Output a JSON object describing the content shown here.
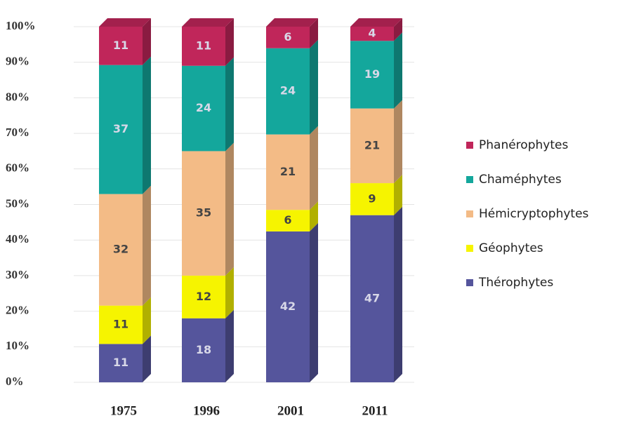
{
  "chart_data": {
    "type": "stacked_bar_100",
    "categories": [
      "1975",
      "1996",
      "2001",
      "2011"
    ],
    "series": [
      {
        "name": "Thérophytes",
        "color": "#55559c",
        "values": [
          11,
          18,
          42,
          47
        ]
      },
      {
        "name": "Géophytes",
        "color": "#f6f400",
        "values": [
          11,
          12,
          6,
          9
        ]
      },
      {
        "name": "Hémicryptophytes",
        "color": "#f3bb86",
        "values": [
          32,
          35,
          21,
          21
        ]
      },
      {
        "name": "Chaméphytes",
        "color": "#14a79c",
        "values": [
          37,
          24,
          24,
          19
        ]
      },
      {
        "name": "Phanérophytes",
        "color": "#c0265a",
        "values": [
          11,
          11,
          6,
          4
        ]
      }
    ],
    "ylim": [
      0,
      100
    ],
    "yticks": [
      {
        "value": 0,
        "label": "0%"
      },
      {
        "value": 10,
        "label": "10%"
      },
      {
        "value": 20,
        "label": "20%"
      },
      {
        "value": 30,
        "label": "30%"
      },
      {
        "value": 40,
        "label": "40%"
      },
      {
        "value": 50,
        "label": "50%"
      },
      {
        "value": 60,
        "label": "60%"
      },
      {
        "value": 70,
        "label": "70%"
      },
      {
        "value": 80,
        "label": "80%"
      },
      {
        "value": 90,
        "label": "90%"
      },
      {
        "value": 100,
        "label": "100%"
      }
    ],
    "grid": true,
    "legend": "right"
  }
}
